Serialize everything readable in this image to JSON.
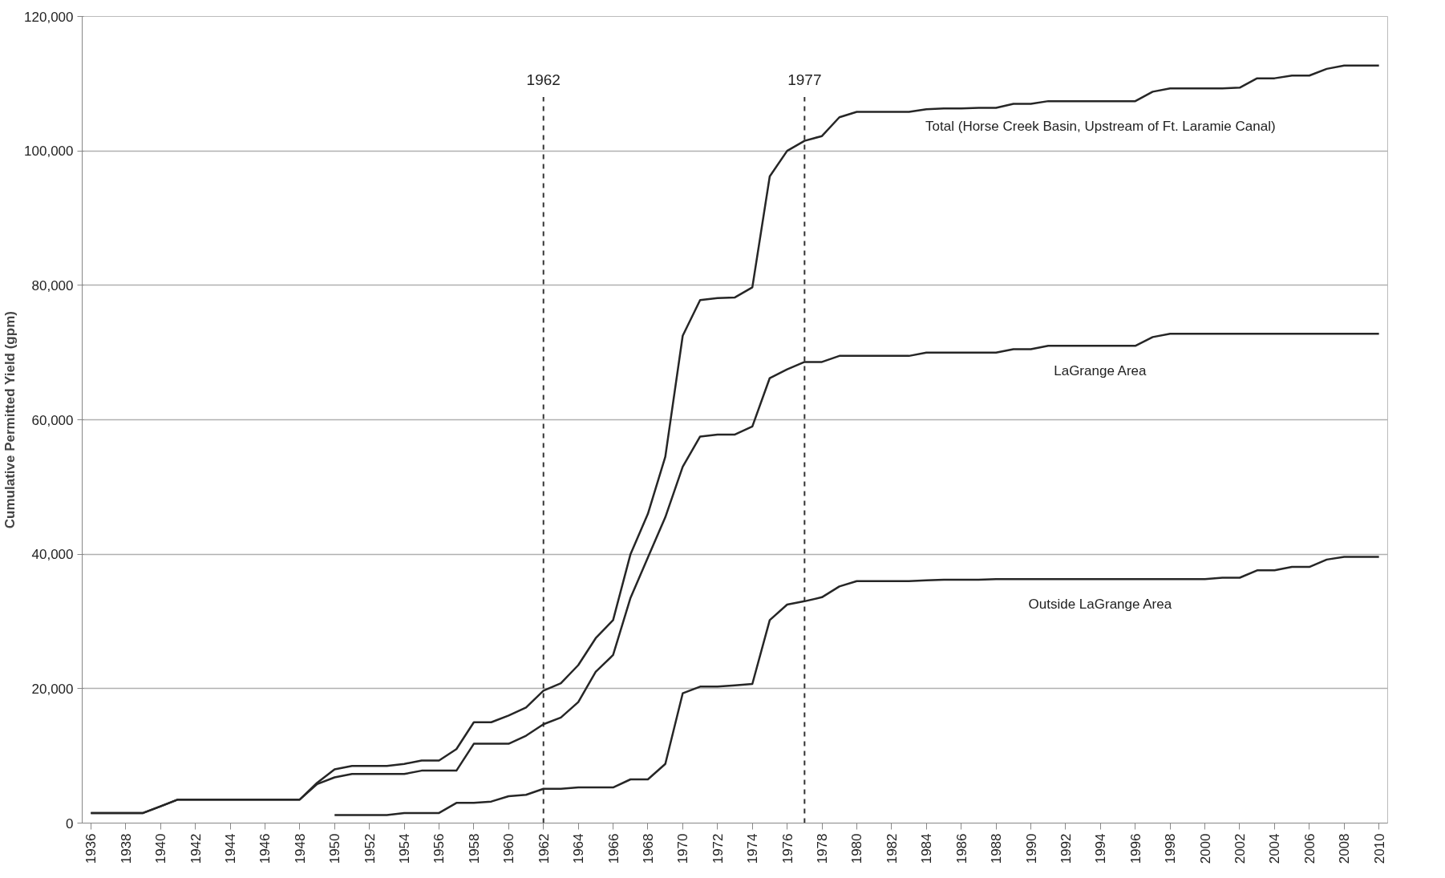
{
  "chart_data": {
    "type": "line",
    "ylabel": "Cumulative Permitted Yield (gpm)",
    "x": [
      1936,
      1937,
      1938,
      1939,
      1940,
      1941,
      1942,
      1943,
      1944,
      1945,
      1946,
      1947,
      1948,
      1949,
      1950,
      1951,
      1952,
      1953,
      1954,
      1955,
      1956,
      1957,
      1958,
      1959,
      1960,
      1961,
      1962,
      1963,
      1964,
      1965,
      1966,
      1967,
      1968,
      1969,
      1970,
      1971,
      1972,
      1973,
      1974,
      1975,
      1976,
      1977,
      1978,
      1979,
      1980,
      1981,
      1982,
      1983,
      1984,
      1985,
      1986,
      1987,
      1988,
      1989,
      1990,
      1991,
      1992,
      1993,
      1994,
      1995,
      1996,
      1997,
      1998,
      1999,
      2000,
      2001,
      2002,
      2003,
      2004,
      2005,
      2006,
      2007,
      2008,
      2009,
      2010
    ],
    "series": [
      {
        "name": "Total (Horse Creek Basin, Upstream of Ft. Laramie Canal)",
        "color": "#262626",
        "values": [
          1500,
          1500,
          1500,
          1500,
          2500,
          3500,
          3500,
          3500,
          3500,
          3500,
          3500,
          3500,
          3500,
          6000,
          8000,
          8500,
          8500,
          8500,
          8800,
          9300,
          9300,
          11000,
          15000,
          15000,
          16000,
          17200,
          19700,
          20800,
          23500,
          27500,
          30200,
          40000,
          46000,
          54500,
          72500,
          77800,
          78100,
          78200,
          79700,
          96200,
          100000,
          101500,
          102200,
          105000,
          105800,
          105800,
          105800,
          105800,
          106200,
          106300,
          106300,
          106400,
          106400,
          107000,
          107000,
          107400,
          107400,
          107400,
          107400,
          107400,
          107400,
          108800,
          109300,
          109300,
          109300,
          109300,
          109400,
          110800,
          110800,
          111200,
          111200,
          112200,
          112700,
          112700,
          112700
        ]
      },
      {
        "name": "LaGrange Area",
        "color": "#262626",
        "values": [
          1500,
          1500,
          1500,
          1500,
          2500,
          3500,
          3500,
          3500,
          3500,
          3500,
          3500,
          3500,
          3500,
          5800,
          6800,
          7300,
          7300,
          7300,
          7300,
          7800,
          7800,
          7800,
          11800,
          11800,
          11800,
          13000,
          14700,
          15700,
          18000,
          22500,
          25000,
          33500,
          39500,
          45500,
          53000,
          57500,
          57800,
          57800,
          59000,
          66200,
          67500,
          68600,
          68600,
          69500,
          69500,
          69500,
          69500,
          69500,
          70000,
          70000,
          70000,
          70000,
          70000,
          70500,
          70500,
          71000,
          71000,
          71000,
          71000,
          71000,
          71000,
          72300,
          72800,
          72800,
          72800,
          72800,
          72800,
          72800,
          72800,
          72800,
          72800,
          72800,
          72800,
          72800,
          72800
        ]
      },
      {
        "name": "Outside LaGrange Area",
        "color": "#262626",
        "values": [
          null,
          null,
          null,
          null,
          null,
          null,
          null,
          null,
          null,
          null,
          null,
          null,
          null,
          null,
          1200,
          1200,
          1200,
          1200,
          1500,
          1500,
          1500,
          3000,
          3000,
          3200,
          4000,
          4200,
          5100,
          5100,
          5300,
          5300,
          5300,
          6500,
          6500,
          8800,
          19300,
          20300,
          20300,
          20500,
          20700,
          30200,
          32500,
          33000,
          33600,
          35200,
          36000,
          36000,
          36000,
          36000,
          36100,
          36200,
          36200,
          36200,
          36300,
          36300,
          36300,
          36300,
          36300,
          36300,
          36300,
          36300,
          36300,
          36300,
          36300,
          36300,
          36300,
          36500,
          36500,
          37600,
          37600,
          38100,
          38100,
          39200,
          39600,
          39600,
          39600
        ]
      }
    ],
    "xlim": [
      1935.5,
      2010.5
    ],
    "xticks": [
      1936,
      1938,
      1940,
      1942,
      1944,
      1946,
      1948,
      1950,
      1952,
      1954,
      1956,
      1958,
      1960,
      1962,
      1964,
      1966,
      1968,
      1970,
      1972,
      1974,
      1976,
      1978,
      1980,
      1982,
      1984,
      1986,
      1988,
      1990,
      1992,
      1994,
      1996,
      1998,
      2000,
      2002,
      2004,
      2006,
      2008,
      2010
    ],
    "ylim": [
      0,
      120000
    ],
    "yticks": [
      {
        "value": 0,
        "label": "0"
      },
      {
        "value": 20000,
        "label": "20,000"
      },
      {
        "value": 40000,
        "label": "40,000"
      },
      {
        "value": 60000,
        "label": "60,000"
      },
      {
        "value": 80000,
        "label": "80,000"
      },
      {
        "value": 100000,
        "label": "100,000"
      },
      {
        "value": 120000,
        "label": "120,000"
      }
    ],
    "ref_lines": [
      {
        "axis": "x",
        "value": 1962,
        "label": "1962",
        "line_style": "dashed",
        "color": "#333333"
      },
      {
        "axis": "x",
        "value": 1977,
        "label": "1977",
        "line_style": "dashed",
        "color": "#333333"
      }
    ],
    "grid": "y",
    "marker": "none",
    "line_style": "solid"
  }
}
